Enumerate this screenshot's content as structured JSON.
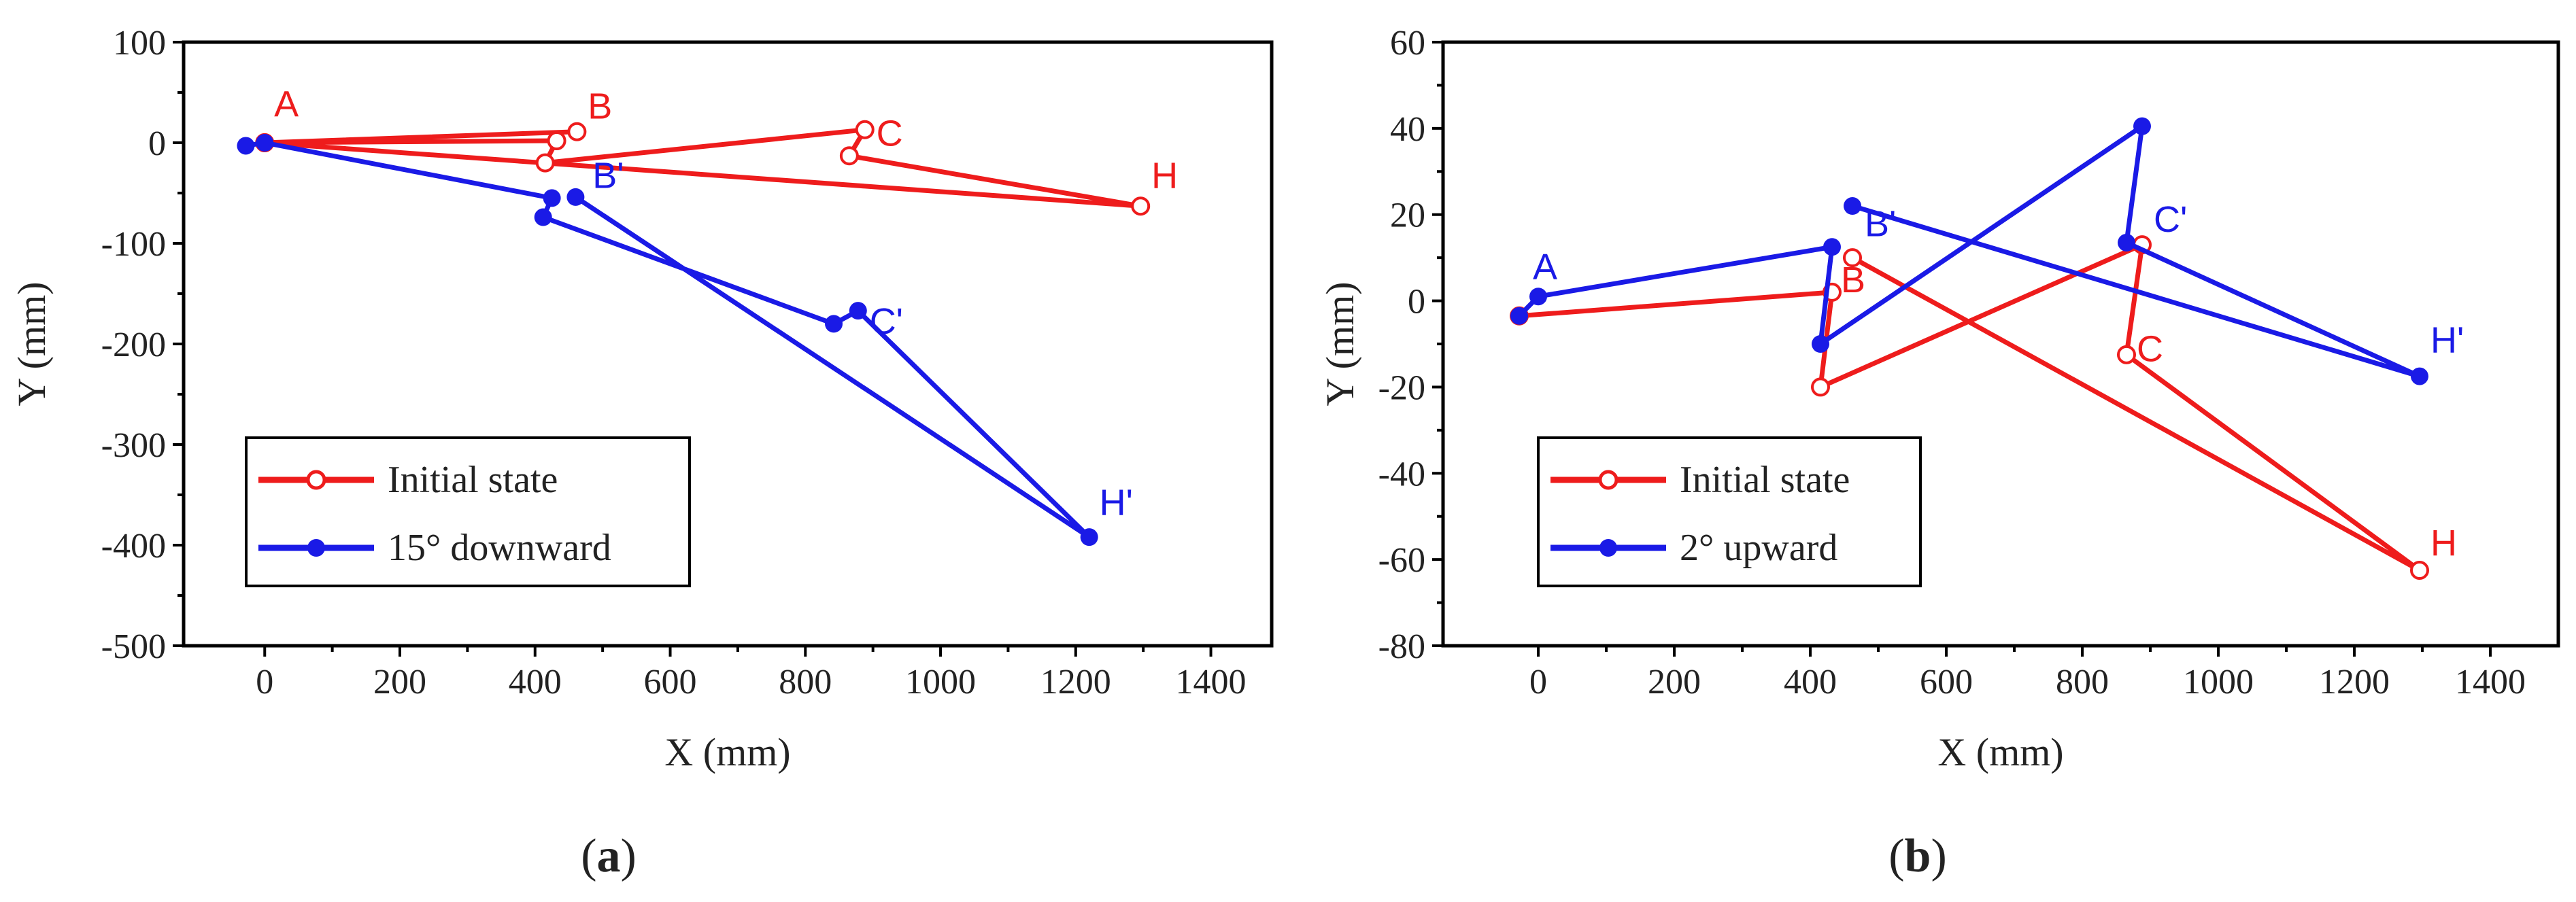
{
  "colors": {
    "initial": "#ee1c1c",
    "moved": "#1a1ae6"
  },
  "chart_data": [
    {
      "type": "line",
      "panel_label": "a",
      "xlabel": "X (mm)",
      "ylabel": "Y (mm)",
      "xlim": [
        -120,
        1490
      ],
      "ylim": [
        -500,
        100
      ],
      "xticks": [
        0,
        200,
        400,
        600,
        800,
        1000,
        1200,
        1400
      ],
      "yticks": [
        100,
        0,
        -100,
        -200,
        -300,
        -400,
        -500
      ],
      "legend": {
        "position": "bottom-left",
        "entries": [
          "Initial state",
          "15° downward"
        ]
      },
      "series": [
        {
          "name": "Initial state",
          "marker": "open-circle",
          "points": [
            {
              "x": 0,
              "y": 0
            },
            {
              "x": 432,
              "y": 2
            },
            {
              "x": 415,
              "y": -20
            },
            {
              "x": 888,
              "y": 13
            },
            {
              "x": 865,
              "y": -13
            },
            {
              "x": 1296,
              "y": -63
            },
            {
              "x": 0,
              "y": 0
            },
            {
              "x": 462,
              "y": 11
            }
          ],
          "labels": [
            {
              "text": "A",
              "x": 14,
              "y": 26
            },
            {
              "text": "B",
              "x": 478,
              "y": 24
            },
            {
              "text": "C",
              "x": 905,
              "y": -3
            },
            {
              "text": "H",
              "x": 1312,
              "y": -45
            }
          ]
        },
        {
          "name": "15° downward",
          "marker": "filled-circle",
          "points": [
            {
              "x": -28,
              "y": -3
            },
            {
              "x": 0,
              "y": 0
            },
            {
              "x": 425,
              "y": -55
            },
            {
              "x": 412,
              "y": -74
            },
            {
              "x": 842,
              "y": -180
            },
            {
              "x": 878,
              "y": -167
            },
            {
              "x": 1220,
              "y": -392
            },
            {
              "x": 460,
              "y": -54
            }
          ],
          "labels": [
            {
              "text": "B'",
              "x": 485,
              "y": -45
            },
            {
              "text": "C'",
              "x": 895,
              "y": -190
            },
            {
              "text": "H'",
              "x": 1235,
              "y": -370
            }
          ]
        }
      ]
    },
    {
      "type": "line",
      "panel_label": "b",
      "xlabel": "X (mm)",
      "ylabel": "Y (mm)",
      "xlim": [
        -140,
        1500
      ],
      "ylim": [
        -80,
        60
      ],
      "xticks": [
        0,
        200,
        400,
        600,
        800,
        1000,
        1200,
        1400
      ],
      "yticks": [
        60,
        40,
        20,
        0,
        -20,
        -40,
        -60,
        -80
      ],
      "legend": {
        "position": "bottom-left",
        "entries": [
          "Initial state",
          "2° upward"
        ]
      },
      "series": [
        {
          "name": "Initial state",
          "marker": "open-circle",
          "points": [
            {
              "x": -28,
              "y": -3.5
            },
            {
              "x": 432,
              "y": 2
            },
            {
              "x": 415,
              "y": -20
            },
            {
              "x": 888,
              "y": 13
            },
            {
              "x": 865,
              "y": -12.5
            },
            {
              "x": 1296,
              "y": -62.5
            },
            {
              "x": 462,
              "y": 10
            }
          ],
          "labels": [
            {
              "text": "B",
              "x": 445,
              "y": 2
            },
            {
              "text": "C",
              "x": 880,
              "y": -14
            },
            {
              "text": "H",
              "x": 1312,
              "y": -59
            }
          ]
        },
        {
          "name": "2° upward",
          "marker": "filled-circle",
          "points": [
            {
              "x": -28,
              "y": -3.5
            },
            {
              "x": 0,
              "y": 1
            },
            {
              "x": 432,
              "y": 12.5
            },
            {
              "x": 415,
              "y": -10
            },
            {
              "x": 888,
              "y": 40.5
            },
            {
              "x": 865,
              "y": 13.5
            },
            {
              "x": 1296,
              "y": -17.5
            },
            {
              "x": 462,
              "y": 22
            }
          ],
          "labels": [
            {
              "text": "A",
              "x": -8,
              "y": 5
            },
            {
              "text": "B'",
              "x": 480,
              "y": 15
            },
            {
              "text": "C'",
              "x": 905,
              "y": 16
            },
            {
              "text": "H'",
              "x": 1312,
              "y": -12
            }
          ]
        }
      ]
    }
  ]
}
